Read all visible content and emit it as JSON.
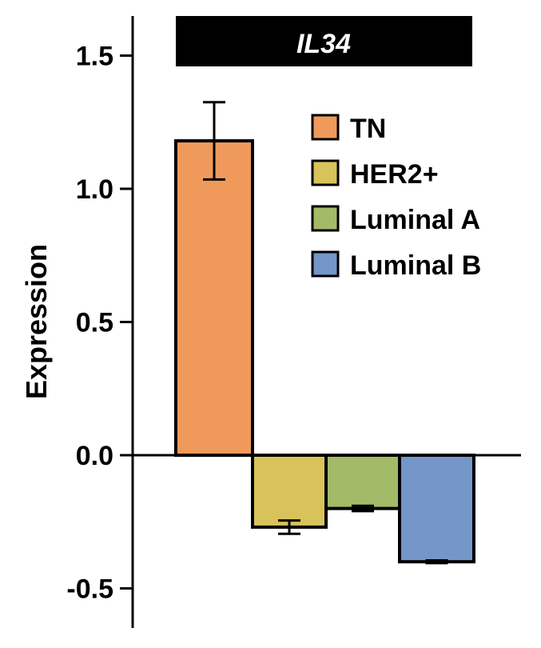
{
  "chart_data": {
    "type": "bar",
    "title": "IL34",
    "ylabel": "Expression",
    "xlabel": "",
    "ylim": [
      -0.65,
      1.65
    ],
    "yticks": [
      "1.5",
      "1.0",
      "0.5",
      "0.0",
      "-0.5"
    ],
    "ytick_values": [
      1.5,
      1.0,
      0.5,
      0.0,
      -0.5
    ],
    "categories": [
      "TN",
      "HER2+",
      "Luminal A",
      "Luminal B"
    ],
    "values": [
      1.18,
      -0.27,
      -0.2,
      -0.4
    ],
    "errors": [
      0.145,
      0.025,
      0.01,
      0.005
    ],
    "colors": [
      "#ef9a5a",
      "#d8c35a",
      "#a3bb68",
      "#7496c8"
    ],
    "legend": {
      "position": "top-right",
      "entries": [
        "TN",
        "HER2+",
        "Luminal A",
        "Luminal B"
      ]
    },
    "grid": false
  }
}
